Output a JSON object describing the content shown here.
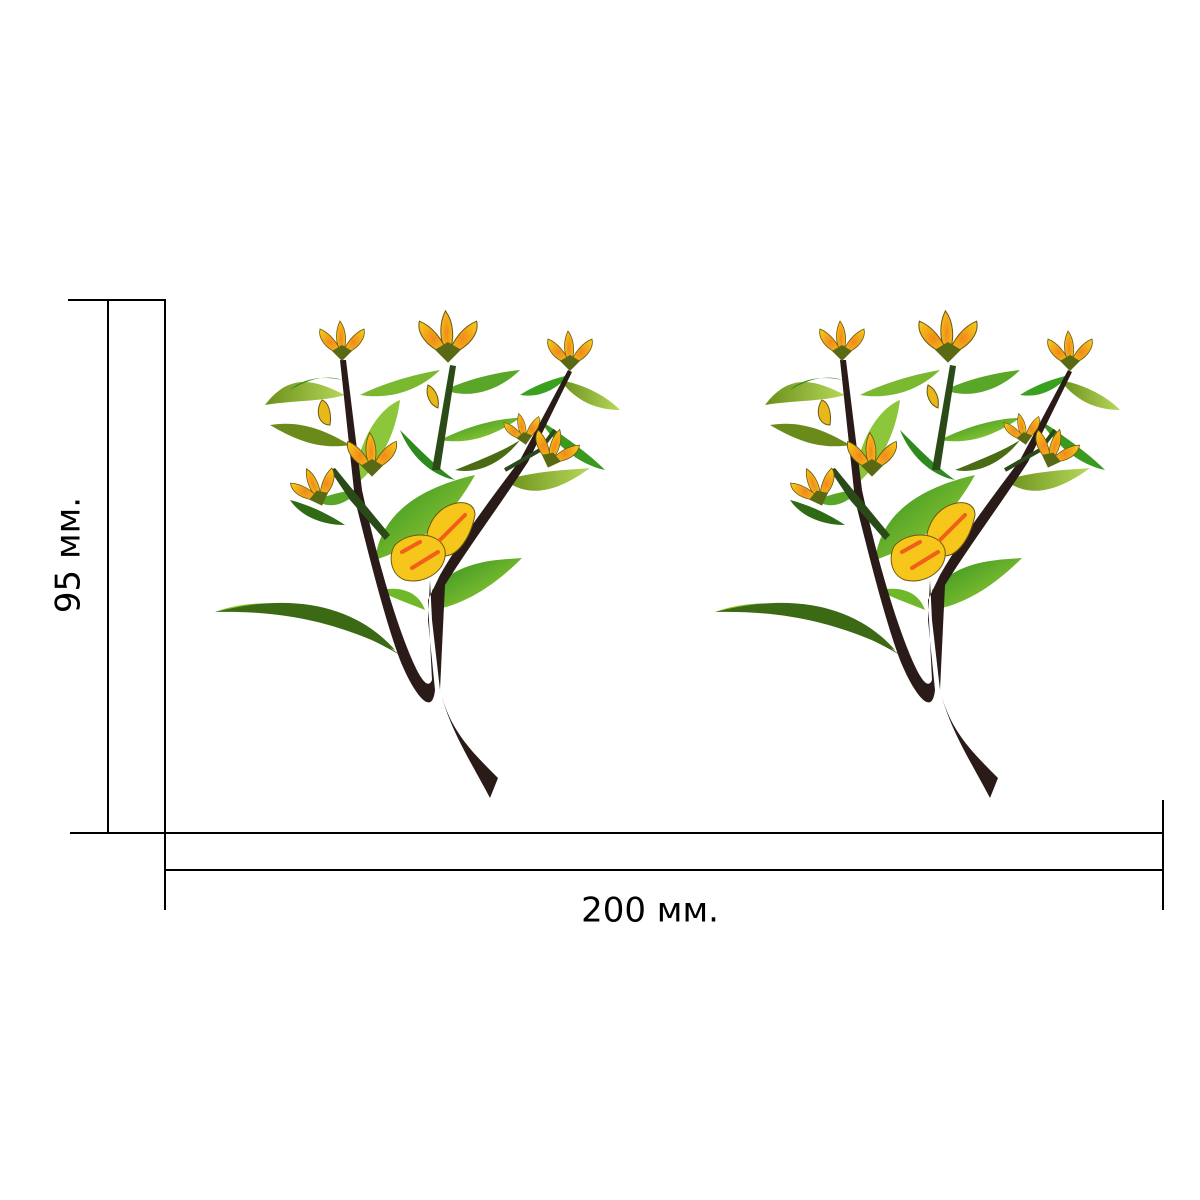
{
  "dimensions": {
    "width_label": "200 мм.",
    "height_label": "95 мм."
  }
}
